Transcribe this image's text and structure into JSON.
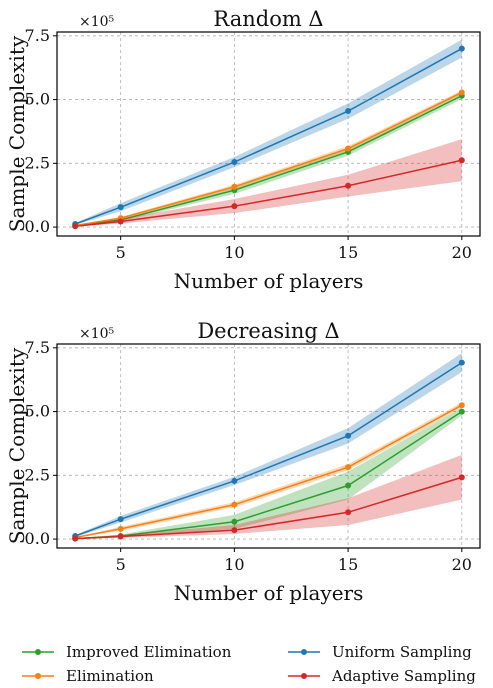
{
  "chart_data": [
    {
      "type": "line",
      "title": "Random Δ",
      "xlabel": "Number of players",
      "ylabel": "Sample Complexity",
      "y_scale_label": "×10⁵",
      "x": [
        3,
        5,
        10,
        15,
        20
      ],
      "xticks": [
        5,
        10,
        15,
        20
      ],
      "xlim": [
        2.2,
        20.8
      ],
      "yticks": [
        0.0,
        2.5,
        5.0,
        7.5
      ],
      "ytick_labels": [
        "0.0",
        "2.5",
        "5.0",
        "7.5"
      ],
      "ylim": [
        -0.35,
        7.65
      ],
      "grid": true,
      "series": [
        {
          "name": "Improved Elimination",
          "color": "#2ca02c",
          "values": [
            0.05,
            0.28,
            1.45,
            2.95,
            5.15
          ],
          "lower": [
            0.04,
            0.22,
            1.3,
            2.8,
            5.02
          ],
          "upper": [
            0.06,
            0.34,
            1.6,
            3.1,
            5.28
          ]
        },
        {
          "name": "Elimination",
          "color": "#ff7f0e",
          "values": [
            0.06,
            0.35,
            1.58,
            3.08,
            5.28
          ],
          "lower": [
            0.05,
            0.3,
            1.5,
            2.98,
            5.2
          ],
          "upper": [
            0.07,
            0.4,
            1.66,
            3.18,
            5.36
          ]
        },
        {
          "name": "Uniform Sampling",
          "color": "#1f77b4",
          "values": [
            0.12,
            0.78,
            2.55,
            4.55,
            7.0
          ],
          "lower": [
            0.08,
            0.62,
            2.35,
            4.25,
            6.65
          ],
          "upper": [
            0.16,
            0.94,
            2.75,
            4.85,
            7.35
          ]
        },
        {
          "name": "Adaptive Sampling",
          "color": "#d62728",
          "values": [
            0.03,
            0.22,
            0.82,
            1.62,
            2.62
          ],
          "lower": [
            0.02,
            0.14,
            0.55,
            1.2,
            1.8
          ],
          "upper": [
            0.05,
            0.32,
            1.1,
            2.05,
            3.45
          ]
        }
      ]
    },
    {
      "type": "line",
      "title": "Decreasing Δ",
      "xlabel": "Number of players",
      "ylabel": "Sample Complexity",
      "y_scale_label": "×10⁵",
      "x": [
        3,
        5,
        10,
        15,
        20
      ],
      "xticks": [
        5,
        10,
        15,
        20
      ],
      "xlim": [
        2.2,
        20.8
      ],
      "yticks": [
        0.0,
        2.5,
        5.0,
        7.5
      ],
      "ytick_labels": [
        "0.0",
        "2.5",
        "5.0",
        "7.5"
      ],
      "ylim": [
        -0.35,
        7.65
      ],
      "grid": true,
      "series": [
        {
          "name": "Improved Elimination",
          "color": "#2ca02c",
          "values": [
            0.02,
            0.12,
            0.68,
            2.1,
            5.0
          ],
          "lower": [
            0.01,
            0.08,
            0.4,
            1.55,
            4.85
          ],
          "upper": [
            0.03,
            0.18,
            0.95,
            2.65,
            5.15
          ]
        },
        {
          "name": "Elimination",
          "color": "#ff7f0e",
          "values": [
            0.06,
            0.4,
            1.35,
            2.82,
            5.25
          ],
          "lower": [
            0.05,
            0.32,
            1.25,
            2.7,
            5.15
          ],
          "upper": [
            0.07,
            0.48,
            1.45,
            2.94,
            5.35
          ]
        },
        {
          "name": "Uniform Sampling",
          "color": "#1f77b4",
          "values": [
            0.12,
            0.78,
            2.28,
            4.05,
            6.92
          ],
          "lower": [
            0.08,
            0.65,
            2.12,
            3.75,
            6.55
          ],
          "upper": [
            0.16,
            0.91,
            2.44,
            4.35,
            7.29
          ]
        },
        {
          "name": "Adaptive Sampling",
          "color": "#d62728",
          "values": [
            0.02,
            0.1,
            0.35,
            1.05,
            2.42
          ],
          "lower": [
            0.01,
            0.05,
            0.2,
            0.55,
            1.55
          ],
          "upper": [
            0.03,
            0.16,
            0.55,
            1.6,
            3.3
          ]
        }
      ]
    }
  ],
  "legend": {
    "items": [
      {
        "name": "Improved Elimination",
        "color": "#2ca02c"
      },
      {
        "name": "Elimination",
        "color": "#ff7f0e"
      },
      {
        "name": "Uniform Sampling",
        "color": "#1f77b4"
      },
      {
        "name": "Adaptive Sampling",
        "color": "#d62728"
      }
    ]
  }
}
